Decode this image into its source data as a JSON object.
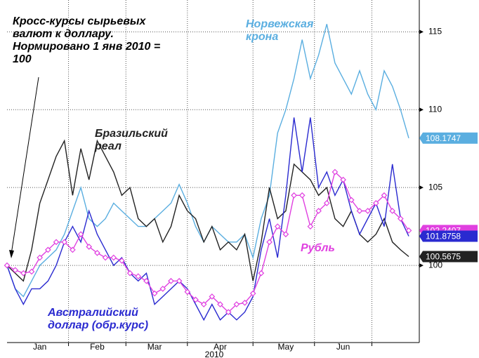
{
  "chart_data": {
    "type": "line",
    "title": "Кросс-курсы сырьевых валют к доллару. Нормировано 1 янв 2010 = 100",
    "xlabel": "2010",
    "categories": [
      null,
      null,
      null,
      null,
      "Jan",
      null,
      null,
      null,
      null,
      null,
      null,
      "Feb",
      null,
      null,
      null,
      null,
      null,
      null,
      "Mar",
      null,
      null,
      null,
      null,
      null,
      null,
      null,
      "Apr",
      null,
      null,
      null,
      null,
      null,
      null,
      null,
      "May",
      null,
      null,
      null,
      null,
      null,
      null,
      "Jun",
      null,
      null,
      null,
      null,
      null,
      null,
      null,
      null
    ],
    "ylim": [
      95,
      117
    ],
    "yticks": [
      100,
      105,
      110,
      115
    ],
    "grid": true,
    "series": [
      {
        "name": "Норвежская крона",
        "color": "#5aaee0",
        "values": [
          100,
          98.5,
          98,
          99,
          100,
          100.5,
          101,
          102,
          103.5,
          105,
          103,
          102.5,
          103,
          104,
          103.5,
          103,
          102.5,
          102.5,
          103,
          103.5,
          104,
          105.2,
          104,
          102.5,
          101.5,
          102.5,
          102,
          101.5,
          101.5,
          102,
          100.5,
          103,
          104.5,
          108.5,
          110,
          112,
          114.5,
          112,
          113.5,
          115.5,
          113,
          112,
          111,
          112.5,
          111,
          110,
          112.5,
          111.5,
          110,
          108.1747
        ],
        "value_labels": [
          null,
          null,
          null,
          null,
          null,
          null,
          null,
          null,
          null,
          null,
          null,
          null,
          null,
          null,
          null,
          null,
          null,
          null,
          null,
          null,
          null,
          null,
          null,
          null,
          null,
          null,
          null,
          null,
          null,
          null,
          null,
          null,
          null,
          null,
          null,
          null,
          null,
          null,
          null,
          null,
          null,
          null,
          null,
          null,
          null,
          null,
          null,
          null,
          null,
          "108.1747"
        ]
      },
      {
        "name": "Бразильский реал",
        "color": "#222222",
        "values": [
          100,
          99.5,
          99,
          101,
          104,
          105.5,
          107,
          108,
          104.5,
          107.5,
          105.5,
          108,
          107,
          106,
          104.5,
          105,
          103,
          102.5,
          103,
          101.5,
          102.5,
          104.5,
          103.5,
          103,
          101.5,
          102.5,
          101,
          101.5,
          101,
          102,
          99,
          101.5,
          105,
          103,
          103.5,
          106.5,
          106,
          105.5,
          104.5,
          105,
          103,
          102.5,
          103.5,
          102,
          101.5,
          102,
          103,
          101.5,
          101,
          100.5675
        ],
        "value_labels": [
          null,
          null,
          null,
          null,
          null,
          null,
          null,
          null,
          null,
          null,
          null,
          null,
          null,
          null,
          null,
          null,
          null,
          null,
          null,
          null,
          null,
          null,
          null,
          null,
          null,
          null,
          null,
          null,
          null,
          null,
          null,
          null,
          null,
          null,
          null,
          null,
          null,
          null,
          null,
          null,
          null,
          null,
          null,
          null,
          null,
          null,
          null,
          null,
          null,
          "100.5675"
        ]
      },
      {
        "name": "Австралийский доллар (обр.курс)",
        "color": "#2a2ad0",
        "values": [
          100,
          98.5,
          97.5,
          98.5,
          98.5,
          99,
          100,
          101.5,
          102.5,
          101.5,
          103.5,
          102,
          101,
          100,
          100.5,
          99.5,
          99,
          99.5,
          97.5,
          98,
          98.5,
          99,
          98.5,
          97.5,
          96.5,
          97.5,
          96.5,
          97,
          96.5,
          97,
          98,
          101,
          103,
          100.5,
          104.5,
          109.5,
          106,
          109.5,
          105,
          106,
          104.5,
          105.5,
          103.5,
          102,
          103,
          104,
          102.5,
          106.5,
          103,
          101.8758
        ],
        "value_labels": [
          null,
          null,
          null,
          null,
          null,
          null,
          null,
          null,
          null,
          null,
          null,
          null,
          null,
          null,
          null,
          null,
          null,
          null,
          null,
          null,
          null,
          null,
          null,
          null,
          null,
          null,
          null,
          null,
          null,
          null,
          null,
          null,
          null,
          null,
          null,
          null,
          null,
          null,
          null,
          null,
          null,
          null,
          null,
          null,
          null,
          null,
          null,
          null,
          null,
          "101.8758"
        ]
      },
      {
        "name": "Рубль",
        "color": "#e040e0",
        "markers": true,
        "values": [
          100,
          99.7,
          99.5,
          99.6,
          100.5,
          101,
          101.5,
          101.5,
          101,
          102,
          101.2,
          100.8,
          100.5,
          100.5,
          100.3,
          99.5,
          99.3,
          99,
          98.2,
          98.5,
          99,
          99,
          98.3,
          97.8,
          97.5,
          98,
          97.5,
          97,
          97.5,
          97.6,
          98.2,
          99.5,
          101.5,
          102.5,
          102,
          104.5,
          104.5,
          102.5,
          103.5,
          104,
          106,
          105.5,
          104.2,
          103.5,
          103.5,
          104,
          104.5,
          103.5,
          103,
          102.2407
        ],
        "value_labels": [
          null,
          null,
          null,
          null,
          null,
          null,
          null,
          null,
          null,
          null,
          null,
          null,
          null,
          null,
          null,
          null,
          null,
          null,
          null,
          null,
          null,
          null,
          null,
          null,
          null,
          null,
          null,
          null,
          null,
          null,
          null,
          null,
          null,
          null,
          null,
          null,
          null,
          null,
          null,
          null,
          null,
          null,
          null,
          null,
          null,
          null,
          null,
          null,
          null,
          "102.2407"
        ]
      }
    ]
  }
}
